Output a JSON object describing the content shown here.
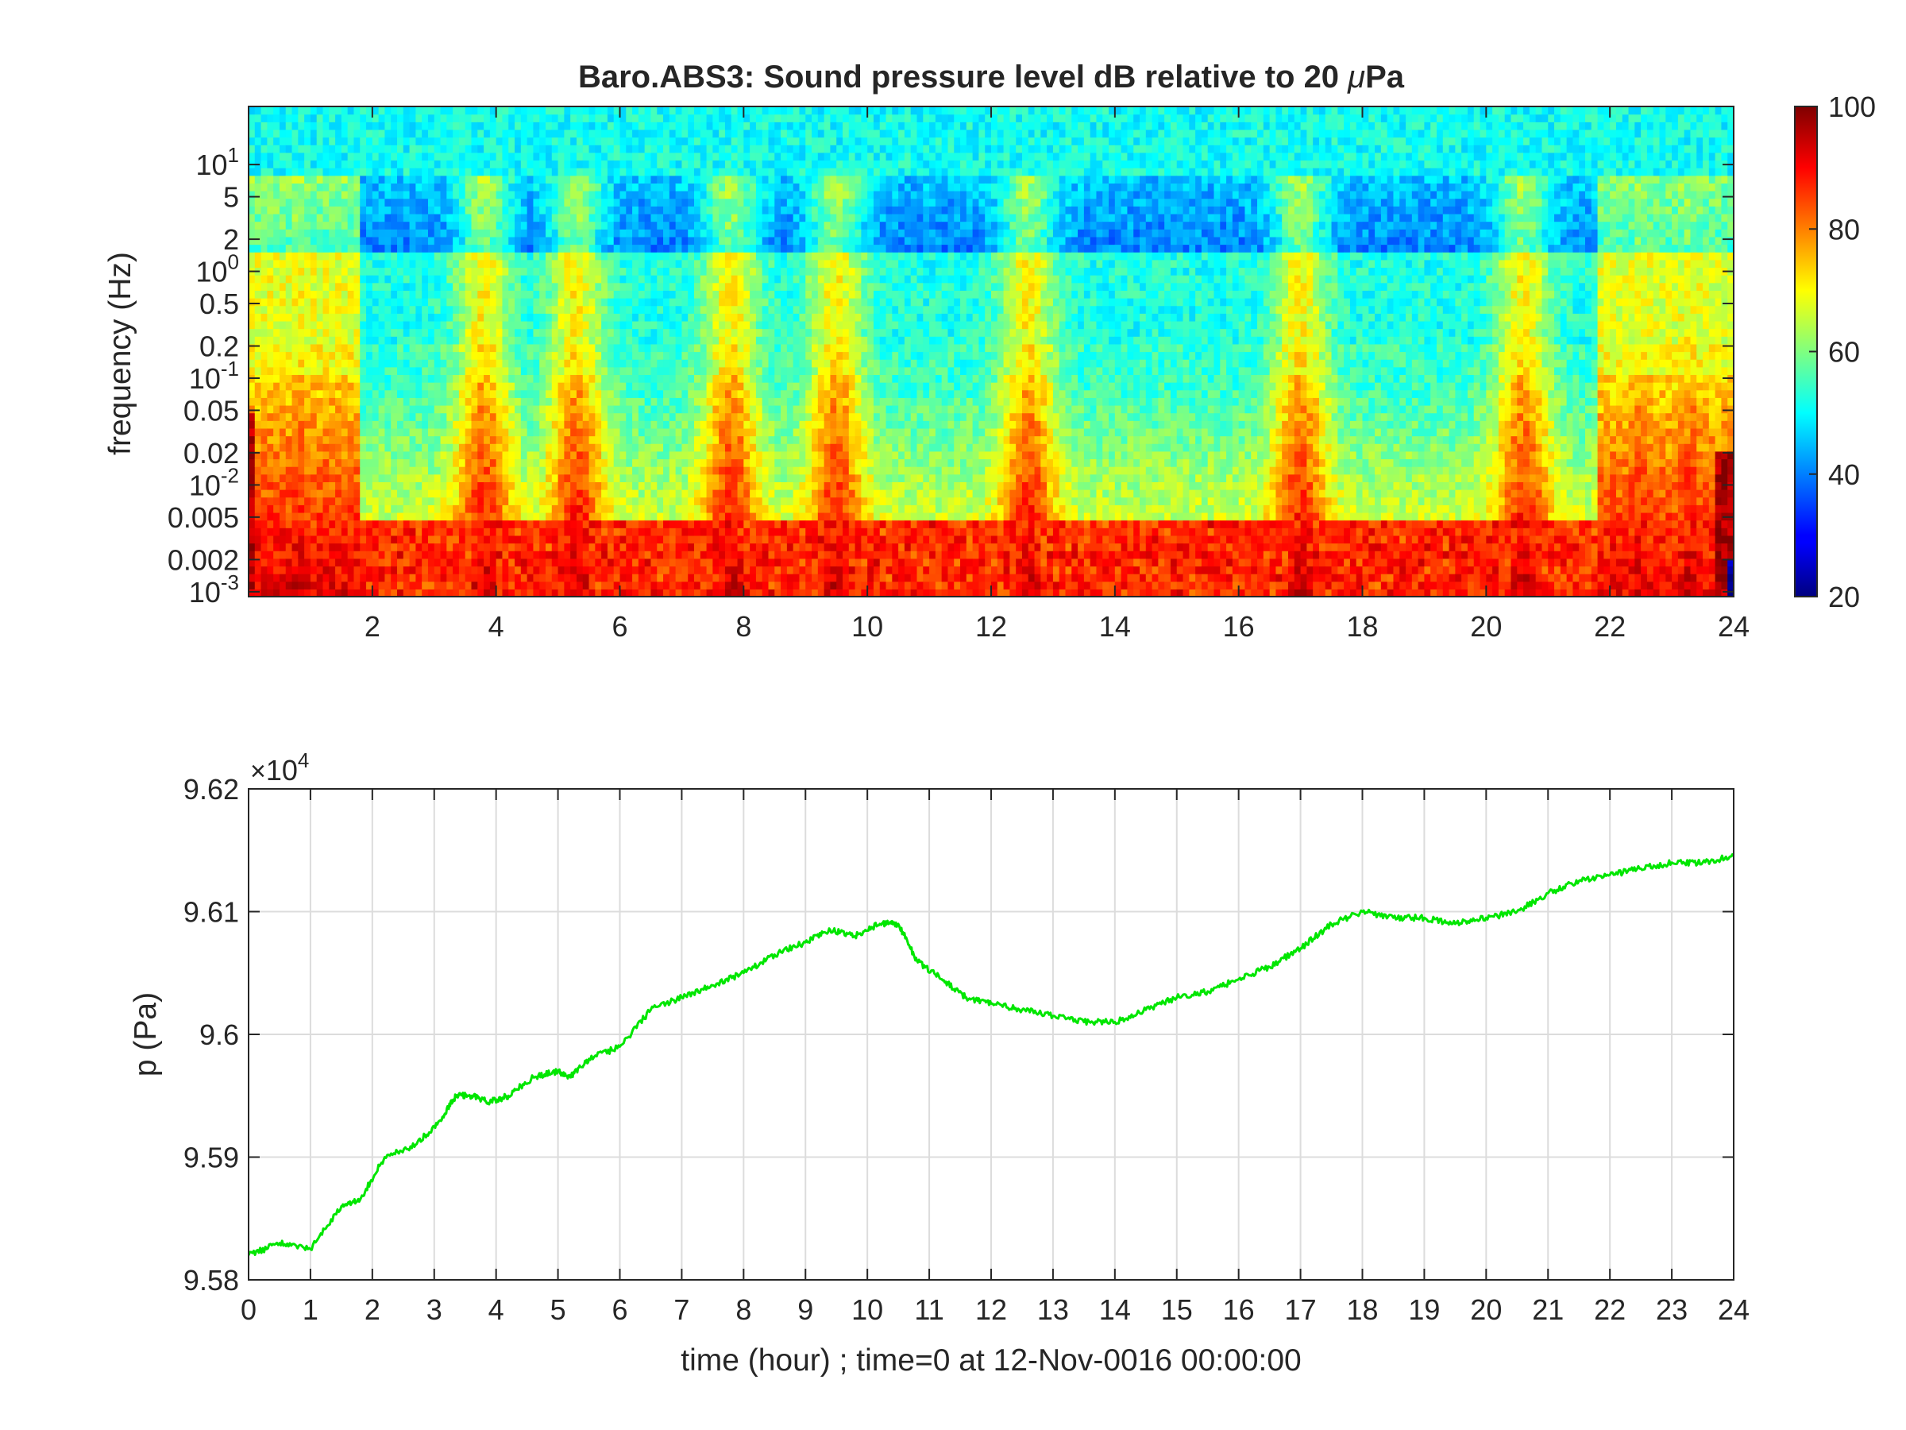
{
  "chart_data": [
    {
      "type": "heatmap",
      "title": "Baro.ABS3: Sound pressure level dB relative to 20 μPa",
      "title_prefix": "Baro.ABS3: Sound pressure level dB relative to 20 ",
      "title_mu": "μ",
      "title_suffix": "Pa",
      "ylabel": "frequency (Hz)",
      "xlim": [
        0,
        24
      ],
      "ylim": [
        0.0009,
        35
      ],
      "yscale": "log",
      "x_ticks": [
        2,
        4,
        6,
        8,
        10,
        12,
        14,
        16,
        18,
        20,
        22,
        24
      ],
      "x_tick_labels": [
        "2",
        "4",
        "6",
        "8",
        "10",
        "12",
        "14",
        "16",
        "18",
        "20",
        "22",
        "24"
      ],
      "y_ticks": [
        {
          "value": 10,
          "mantissa": "10",
          "exponent": "1"
        },
        {
          "value": 5,
          "label": "5"
        },
        {
          "value": 2,
          "label": "2"
        },
        {
          "value": 1,
          "mantissa": "10",
          "exponent": "0"
        },
        {
          "value": 0.5,
          "label": "0.5"
        },
        {
          "value": 0.2,
          "label": "0.2"
        },
        {
          "value": 0.1,
          "mantissa": "10",
          "exponent": "-1"
        },
        {
          "value": 0.05,
          "label": "0.05"
        },
        {
          "value": 0.02,
          "label": "0.02"
        },
        {
          "value": 0.01,
          "mantissa": "10",
          "exponent": "-2"
        },
        {
          "value": 0.005,
          "label": "0.005"
        },
        {
          "value": 0.002,
          "label": "0.002"
        },
        {
          "value": 0.001,
          "mantissa": "10",
          "exponent": "-3"
        }
      ],
      "colormap": "jet",
      "clim": [
        20,
        100
      ],
      "colorbar_ticks": [
        20,
        40,
        60,
        80,
        100
      ],
      "colorbar_tick_labels": [
        "20",
        "40",
        "60",
        "80",
        "100"
      ],
      "activity_bursts_hour": [
        0.8,
        3.8,
        5.3,
        7.8,
        9.5,
        12.6,
        17.0,
        20.6,
        22.5,
        23.3
      ]
    },
    {
      "type": "line",
      "ylabel": "p (Pa)",
      "xlabel": "time (hour) ; time=0 at 12-Nov-0016 00:00:00",
      "xlim": [
        0,
        24
      ],
      "ylim": [
        95800,
        96200
      ],
      "y_multiplier_base": "10",
      "y_multiplier_exponent": "4",
      "grid": true,
      "x_ticks": [
        0,
        1,
        2,
        3,
        4,
        5,
        6,
        7,
        8,
        9,
        10,
        11,
        12,
        13,
        14,
        15,
        16,
        17,
        18,
        19,
        20,
        21,
        22,
        23,
        24
      ],
      "x_tick_labels": [
        "0",
        "1",
        "2",
        "3",
        "4",
        "5",
        "6",
        "7",
        "8",
        "9",
        "10",
        "11",
        "12",
        "13",
        "14",
        "15",
        "16",
        "17",
        "18",
        "19",
        "20",
        "21",
        "22",
        "23",
        "24"
      ],
      "y_ticks": [
        95800,
        95900,
        96000,
        96100,
        96200
      ],
      "y_tick_labels": [
        "9.58",
        "9.59",
        "9.6",
        "9.61",
        "9.62"
      ],
      "series": [
        {
          "color": "#00e600",
          "x": [
            0,
            0.5,
            1.0,
            1.5,
            1.8,
            2.2,
            2.7,
            3.1,
            3.35,
            3.6,
            3.9,
            4.2,
            4.6,
            5.0,
            5.2,
            5.5,
            6.0,
            6.5,
            7.0,
            7.5,
            8.0,
            8.5,
            9.0,
            9.4,
            9.8,
            10.2,
            10.5,
            10.8,
            11.2,
            11.6,
            12.0,
            12.5,
            13.0,
            13.5,
            14.0,
            14.5,
            15.0,
            15.5,
            16.0,
            16.5,
            17.0,
            17.5,
            18.0,
            18.5,
            19.0,
            19.5,
            20.0,
            20.5,
            21.0,
            21.5,
            22.0,
            22.5,
            23.0,
            23.5,
            24.0
          ],
          "y": [
            95820,
            95830,
            95825,
            95860,
            95865,
            95900,
            95910,
            95930,
            95950,
            95950,
            95945,
            95950,
            95965,
            95970,
            95965,
            95980,
            95990,
            96020,
            96030,
            96040,
            96050,
            96065,
            96075,
            96085,
            96080,
            96090,
            96090,
            96060,
            96045,
            96030,
            96025,
            96020,
            96015,
            96010,
            96010,
            96020,
            96030,
            96035,
            96045,
            96055,
            96070,
            96090,
            96100,
            96095,
            96095,
            96090,
            96095,
            96100,
            96115,
            96125,
            96130,
            96135,
            96140,
            96140,
            96145
          ]
        }
      ]
    }
  ]
}
